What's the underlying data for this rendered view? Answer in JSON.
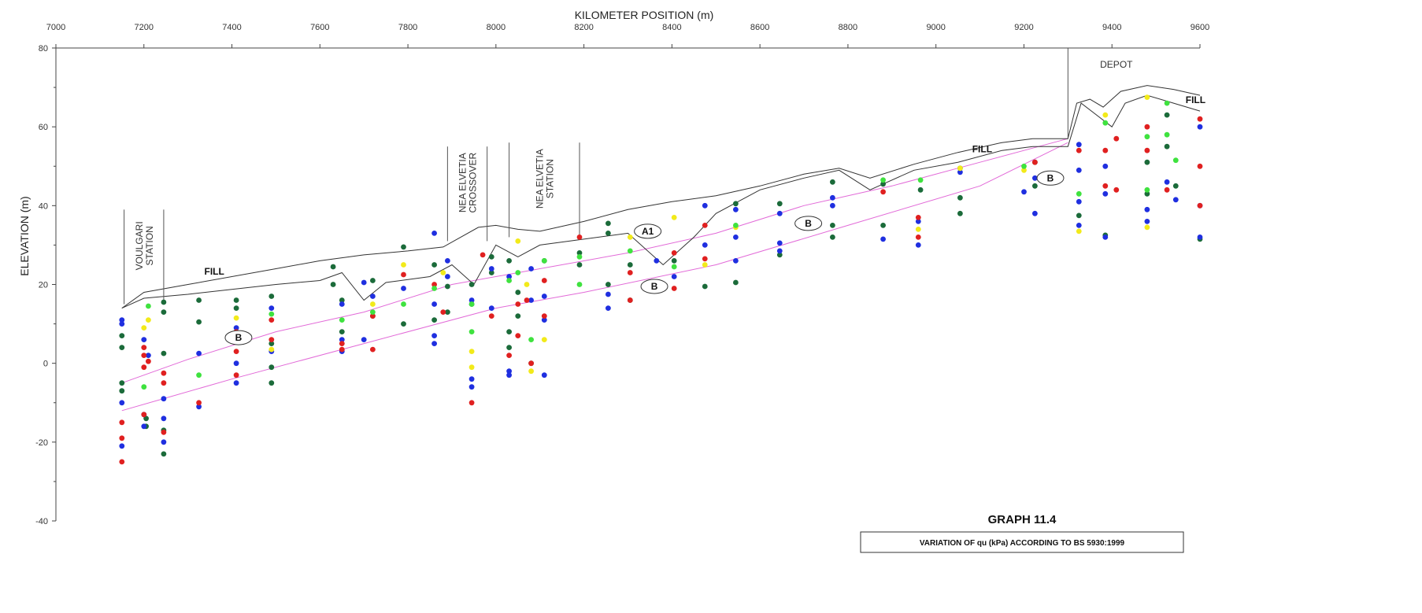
{
  "chart_data": {
    "type": "scatter",
    "title": "GRAPH  11.4",
    "subtitle": "VARIATION OF qu (kPa) ACCORDING TO BS 5930:1999",
    "xlabel": "KILOMETER POSITION (m)",
    "ylabel": "ELEVATION (m)",
    "xlim": [
      7000,
      9600
    ],
    "ylim": [
      -40,
      80
    ],
    "x_ticks": [
      7000,
      7200,
      7400,
      7600,
      7800,
      8000,
      8200,
      8400,
      8600,
      8800,
      9000,
      9200,
      9400,
      9600
    ],
    "y_ticks": [
      80,
      60,
      40,
      20,
      0,
      -20,
      -40
    ],
    "grid": false,
    "colors": {
      "dark_green": "#1b6b3a",
      "blue": "#1f2fe0",
      "red": "#e02020",
      "yellow": "#f2ea1a",
      "light_green": "#3fe23f",
      "outline": "#333333",
      "boundary": "#e26ad8"
    },
    "stations": [
      {
        "label": "VOULGARI STATION",
        "x_range": [
          7155,
          7245
        ],
        "y_top": 39
      },
      {
        "label": "NEA ELVETIA CROSSOVER",
        "x_range": [
          7890,
          7980
        ],
        "y_top": 55
      },
      {
        "label": "NEA ELVETIA STATION",
        "x_range": [
          8030,
          8190
        ],
        "y_top": 56
      }
    ],
    "depot": {
      "label": "DEPOT",
      "x": 9300,
      "y_top": 80
    },
    "annotations": [
      {
        "text": "FILL",
        "x": 7360,
        "y": 22.5,
        "style": "bold"
      },
      {
        "text": "FILL",
        "x": 9105,
        "y": 53.5,
        "style": "bold"
      },
      {
        "text": "FILL",
        "x": 9590,
        "y": 66,
        "style": "bold"
      },
      {
        "text": "B",
        "x": 7415,
        "y": 6.5,
        "style": "oval"
      },
      {
        "text": "A1",
        "x": 8345,
        "y": 33.5,
        "style": "oval"
      },
      {
        "text": "B",
        "x": 8360,
        "y": 19.5,
        "style": "oval"
      },
      {
        "text": "B",
        "x": 8710,
        "y": 35.5,
        "style": "oval"
      },
      {
        "text": "B",
        "x": 9260,
        "y": 47,
        "style": "oval"
      }
    ],
    "ground_surface": {
      "x": [
        7150,
        7200,
        7300,
        7500,
        7600,
        7700,
        7800,
        7880,
        7960,
        8000,
        8050,
        8100,
        8200,
        8300,
        8400,
        8500,
        8600,
        8700,
        8780,
        8850,
        8950,
        9050,
        9150,
        9220,
        9300,
        9320,
        9350,
        9380,
        9420,
        9480,
        9540,
        9600
      ],
      "y": [
        14,
        18,
        20,
        24,
        26,
        27.5,
        28.5,
        29.5,
        34.5,
        35,
        34,
        33.5,
        36,
        39,
        41,
        42.5,
        45,
        48,
        49.5,
        47,
        50.5,
        53.5,
        56,
        57,
        57,
        66,
        67,
        65,
        69,
        70.5,
        69.5,
        68
      ]
    },
    "fill_base": {
      "x": [
        7150,
        7200,
        7300,
        7500,
        7600,
        7650,
        7700,
        7750,
        7850,
        7900,
        7950,
        8000,
        8050,
        8100,
        8200,
        8300,
        8380,
        8450,
        8500,
        8600,
        8700,
        8780,
        8850,
        8950,
        9050,
        9150,
        9220,
        9300,
        9330,
        9400,
        9430,
        9480,
        9540,
        9600
      ],
      "y": [
        14,
        16.5,
        17.5,
        20,
        21,
        23,
        16,
        20.5,
        22,
        25,
        20,
        30,
        27,
        30,
        31.5,
        33,
        25,
        32,
        38,
        44,
        47,
        49,
        44,
        49,
        51,
        54,
        55,
        55,
        66,
        60,
        66,
        68,
        66,
        64
      ]
    },
    "boundary_upper": {
      "x": [
        7150,
        7300,
        7500,
        7700,
        7900,
        8100,
        8300,
        8500,
        8700,
        8900,
        9100,
        9300
      ],
      "y": [
        -5,
        1,
        8,
        13,
        20,
        24,
        28,
        33,
        40,
        45,
        51,
        57
      ]
    },
    "boundary_lower": {
      "x": [
        7150,
        7400,
        7700,
        8000,
        8200,
        8500,
        8800,
        9100,
        9300
      ],
      "y": [
        -12,
        -4,
        5,
        14,
        18,
        25,
        35,
        45,
        56
      ]
    },
    "series": [
      {
        "name": "dark green",
        "color": "dark_green",
        "x": [
          7150,
          7150,
          7150,
          7150,
          7205,
          7205,
          7245,
          7245,
          7245,
          7245,
          7245,
          7325,
          7325,
          7410,
          7410,
          7490,
          7490,
          7490,
          7490,
          7630,
          7630,
          7650,
          7650,
          7720,
          7720,
          7790,
          7790,
          7860,
          7860,
          7890,
          7890,
          7945,
          7945,
          7990,
          7990,
          8030,
          8030,
          8030,
          8050,
          8050,
          8080,
          8110,
          8190,
          8190,
          8255,
          8255,
          8255,
          8305,
          8305,
          8405,
          8475,
          8545,
          8545,
          8645,
          8645,
          8765,
          8765,
          8765,
          8880,
          8880,
          8965,
          9055,
          9055,
          9055,
          9225,
          9225,
          9325,
          9385,
          9480,
          9480,
          9525,
          9525,
          9545,
          9600
        ],
        "y": [
          7,
          4,
          -5,
          -7,
          -14,
          -16,
          15.5,
          13,
          2.5,
          -17,
          -23,
          16,
          10.5,
          16,
          14,
          17,
          5,
          -1,
          -5,
          24.5,
          20,
          16,
          8,
          21,
          12,
          29.5,
          10,
          25,
          11,
          19.5,
          13,
          20,
          15,
          27,
          23,
          26,
          8,
          4,
          18,
          12,
          0,
          26,
          28,
          25,
          35.5,
          33,
          20,
          16,
          25,
          26,
          19.5,
          40.5,
          20.5,
          40.5,
          27.5,
          46,
          35,
          32,
          45.5,
          35,
          44,
          49.5,
          42,
          38,
          51,
          45,
          37.5,
          32.5,
          51,
          43,
          63,
          55,
          45,
          31.5
        ]
      },
      {
        "name": "blue",
        "color": "blue",
        "x": [
          7150,
          7150,
          7150,
          7150,
          7200,
          7200,
          7200,
          7210,
          7245,
          7245,
          7245,
          7325,
          7325,
          7410,
          7410,
          7410,
          7490,
          7490,
          7650,
          7650,
          7650,
          7700,
          7700,
          7720,
          7790,
          7860,
          7860,
          7860,
          7860,
          7890,
          7890,
          7945,
          7945,
          7945,
          7990,
          7990,
          8030,
          8030,
          8030,
          8080,
          8080,
          8110,
          8110,
          8110,
          8255,
          8255,
          8365,
          8405,
          8475,
          8475,
          8545,
          8545,
          8545,
          8645,
          8645,
          8645,
          8765,
          8765,
          8880,
          8960,
          8960,
          9055,
          9200,
          9225,
          9225,
          9325,
          9325,
          9325,
          9325,
          9385,
          9385,
          9385,
          9480,
          9480,
          9525,
          9545,
          9600,
          9600,
          9600
        ],
        "y": [
          11,
          10,
          -10,
          -21,
          6,
          -13,
          -16,
          2,
          -9,
          -14,
          -20,
          2.5,
          -11,
          9,
          0,
          -5,
          14,
          3,
          15,
          6,
          3,
          20.5,
          6,
          17,
          19,
          33,
          15,
          7,
          5,
          26,
          22,
          16,
          -4,
          -6,
          24,
          14,
          22,
          -2,
          -3,
          24,
          16,
          17,
          11,
          -3,
          17.5,
          14,
          26,
          22,
          40,
          30,
          39,
          32,
          26,
          38,
          30.5,
          28.5,
          42,
          40,
          31.5,
          36,
          30,
          48.5,
          43.5,
          47,
          38,
          55.5,
          49,
          41,
          35,
          50,
          43,
          32,
          39,
          36,
          46,
          41.5,
          60,
          40,
          32
        ]
      },
      {
        "name": "red",
        "color": "red",
        "x": [
          7150,
          7150,
          7150,
          7200,
          7200,
          7200,
          7200,
          7210,
          7245,
          7245,
          7245,
          7325,
          7410,
          7410,
          7410,
          7490,
          7490,
          7650,
          7650,
          7720,
          7720,
          7790,
          7860,
          7880,
          7945,
          7970,
          7990,
          8030,
          8050,
          8050,
          8070,
          8080,
          8110,
          8110,
          8190,
          8305,
          8305,
          8405,
          8405,
          8475,
          8475,
          8880,
          8960,
          8960,
          9225,
          9325,
          9385,
          9385,
          9410,
          9410,
          9480,
          9480,
          9525,
          9600,
          9600,
          9600
        ],
        "y": [
          -15,
          -19,
          -25,
          4,
          2,
          -1,
          -13,
          0.5,
          -2.5,
          -5,
          -17.5,
          -10,
          8,
          3,
          -3,
          11,
          6,
          5,
          3.5,
          12,
          3.5,
          22.5,
          20,
          13,
          -10,
          27.5,
          12,
          2,
          15,
          7,
          16,
          0,
          21,
          12,
          32,
          23,
          16,
          28,
          19,
          35,
          26.5,
          43.5,
          37,
          32,
          51,
          54,
          54,
          45,
          57,
          44,
          60,
          54,
          44,
          62,
          50,
          40
        ]
      },
      {
        "name": "yellow",
        "color": "yellow",
        "x": [
          7200,
          7210,
          7410,
          7490,
          7720,
          7790,
          7880,
          7945,
          7945,
          8050,
          8070,
          8080,
          8110,
          8305,
          8405,
          8475,
          8545,
          8960,
          9055,
          9200,
          9325,
          9385,
          9480,
          9480
        ],
        "y": [
          9,
          11,
          11.5,
          3.5,
          15,
          25,
          23,
          3,
          -1,
          31,
          20,
          -2,
          6,
          32,
          37,
          25,
          34.5,
          34,
          49.5,
          49,
          33.5,
          63,
          67.5,
          34.5
        ]
      },
      {
        "name": "light green",
        "color": "light_green",
        "x": [
          7210,
          7200,
          7325,
          7410,
          7490,
          7650,
          7720,
          7790,
          7860,
          7945,
          7945,
          8030,
          8050,
          8080,
          8110,
          8190,
          8190,
          8305,
          8405,
          8545,
          8880,
          8965,
          9200,
          9325,
          9385,
          9480,
          9480,
          9525,
          9525,
          9545
        ],
        "y": [
          14.5,
          -6,
          -3,
          6.5,
          12.5,
          11,
          13,
          15,
          19,
          15,
          8,
          21,
          23,
          6,
          26,
          27,
          20,
          28.5,
          24.5,
          35,
          46.5,
          46.5,
          50,
          43,
          61,
          57.5,
          44,
          66,
          58,
          51.5
        ]
      }
    ]
  }
}
